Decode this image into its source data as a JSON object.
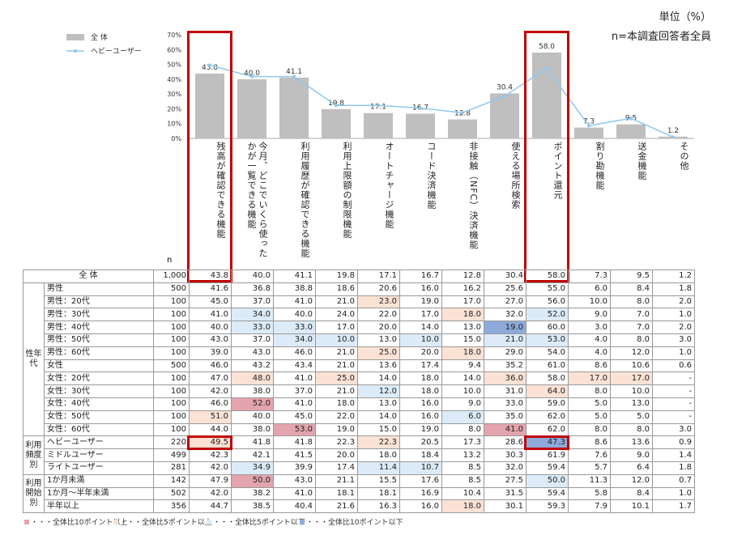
{
  "unit": "単位（%）",
  "base_note": "n=本調査回答者全員",
  "chart_data": {
    "type": "bar",
    "categories": [
      "残高が確認できる機能",
      "今月、どこでいくら使ったかが一覧できる機能",
      "利用履歴が確認できる機能",
      "利用上限額の制限機能",
      "オートチャージ機能",
      "コード決済機能",
      "非接触（NFC）決済機能",
      "使える場所検索",
      "ポイント還元",
      "割り勘機能",
      "送金機能",
      "その他"
    ],
    "ylim": [
      0,
      70
    ],
    "yticks": [
      {
        "value": 0,
        "label": "0%"
      },
      {
        "value": 10,
        "label": "10%"
      },
      {
        "value": 20,
        "label": "20%"
      },
      {
        "value": 30,
        "label": "30%"
      },
      {
        "value": 40,
        "label": "40%"
      },
      {
        "value": 50,
        "label": "50%"
      },
      {
        "value": 60,
        "label": "60%"
      },
      {
        "value": 70,
        "label": "70%"
      }
    ],
    "series": [
      {
        "name": "全 体",
        "color": "#bfbfbf",
        "type": "bar",
        "values": [
          43.8,
          40.0,
          41.1,
          19.8,
          17.1,
          16.7,
          12.8,
          30.4,
          58.0,
          7.3,
          9.5,
          1.2
        ],
        "value_labels": [
          "43.8",
          "40.0",
          "41.1",
          "19.8",
          "17.1",
          "16.7",
          "12.8",
          "30.4",
          "58.0",
          "7.3",
          "9.5",
          "1.2"
        ]
      },
      {
        "name": "ヘビーユーザー",
        "color": "#8ec8f0",
        "type": "line",
        "values": [
          49.5,
          41.8,
          41.8,
          22.3,
          22.3,
          20.5,
          17.3,
          28.6,
          47.3,
          8.6,
          13.6,
          0.9
        ]
      }
    ]
  },
  "table": {
    "n_header": "n",
    "total": {
      "label": "全 体",
      "n": "1,000",
      "values": [
        "43.8",
        "40.0",
        "41.1",
        "19.8",
        "17.1",
        "16.7",
        "12.8",
        "30.4",
        "58.0",
        "7.3",
        "9.5",
        "1.2"
      ]
    },
    "groups": [
      {
        "label": "性年代",
        "rows": [
          {
            "label": "男性",
            "n": "500",
            "values": [
              "41.6",
              "36.8",
              "38.8",
              "18.6",
              "20.6",
              "16.0",
              "16.2",
              "25.6",
              "55.0",
              "6.0",
              "8.4",
              "1.8"
            ],
            "shade": [
              null,
              null,
              null,
              null,
              null,
              null,
              null,
              null,
              null,
              null,
              null,
              null
            ]
          },
          {
            "label": "男性：20代",
            "n": "100",
            "values": [
              "45.0",
              "37.0",
              "41.0",
              "21.0",
              "23.0",
              "19.0",
              "17.0",
              "27.0",
              "56.0",
              "10.0",
              "8.0",
              "2.0"
            ],
            "shade": [
              null,
              null,
              null,
              null,
              1,
              null,
              null,
              null,
              null,
              null,
              null,
              null
            ]
          },
          {
            "label": "男性：30代",
            "n": "100",
            "values": [
              "41.0",
              "34.0",
              "40.0",
              "24.0",
              "22.0",
              "17.0",
              "18.0",
              "32.0",
              "52.0",
              "9.0",
              "7.0",
              "1.0"
            ],
            "shade": [
              null,
              2,
              null,
              null,
              null,
              null,
              1,
              null,
              2,
              null,
              null,
              null
            ]
          },
          {
            "label": "男性：40代",
            "n": "100",
            "values": [
              "40.0",
              "33.0",
              "33.0",
              "17.0",
              "20.0",
              "14.0",
              "13.0",
              "19.0",
              "60.0",
              "3.0",
              "7.0",
              "2.0"
            ],
            "shade": [
              null,
              2,
              2,
              null,
              null,
              null,
              null,
              3,
              null,
              null,
              null,
              null
            ]
          },
          {
            "label": "男性：50代",
            "n": "100",
            "values": [
              "43.0",
              "37.0",
              "34.0",
              "10.0",
              "13.0",
              "10.0",
              "15.0",
              "21.0",
              "53.0",
              "4.0",
              "8.0",
              "3.0"
            ],
            "shade": [
              null,
              null,
              2,
              2,
              null,
              2,
              null,
              2,
              2,
              null,
              null,
              null
            ]
          },
          {
            "label": "男性：60代",
            "n": "100",
            "values": [
              "39.0",
              "43.0",
              "46.0",
              "21.0",
              "25.0",
              "20.0",
              "18.0",
              "29.0",
              "54.0",
              "4.0",
              "12.0",
              "1.0"
            ],
            "shade": [
              null,
              null,
              null,
              null,
              1,
              null,
              1,
              null,
              null,
              null,
              null,
              null
            ]
          },
          {
            "label": "女性",
            "n": "500",
            "values": [
              "46.0",
              "43.2",
              "43.4",
              "21.0",
              "13.6",
              "17.4",
              "9.4",
              "35.2",
              "61.0",
              "8.6",
              "10.6",
              "0.6"
            ],
            "shade": [
              null,
              null,
              null,
              null,
              null,
              null,
              null,
              null,
              null,
              null,
              null,
              null
            ]
          },
          {
            "label": "女性：20代",
            "n": "100",
            "values": [
              "47.0",
              "48.0",
              "41.0",
              "25.0",
              "14.0",
              "18.0",
              "14.0",
              "36.0",
              "58.0",
              "17.0",
              "17.0",
              "-"
            ],
            "shade": [
              null,
              1,
              null,
              1,
              null,
              null,
              null,
              1,
              null,
              1,
              1,
              null
            ]
          },
          {
            "label": "女性：30代",
            "n": "100",
            "values": [
              "42.0",
              "38.0",
              "37.0",
              "21.0",
              "12.0",
              "18.0",
              "10.0",
              "31.0",
              "64.0",
              "8.0",
              "10.0",
              "-"
            ],
            "shade": [
              null,
              null,
              null,
              null,
              2,
              null,
              null,
              null,
              1,
              null,
              null,
              null
            ]
          },
          {
            "label": "女性：40代",
            "n": "100",
            "values": [
              "46.0",
              "52.0",
              "41.0",
              "18.0",
              "13.0",
              "16.0",
              "9.0",
              "33.0",
              "59.0",
              "5.0",
              "13.0",
              "-"
            ],
            "shade": [
              null,
              0,
              null,
              null,
              null,
              null,
              null,
              null,
              null,
              null,
              null,
              null
            ]
          },
          {
            "label": "女性：50代",
            "n": "100",
            "values": [
              "51.0",
              "40.0",
              "45.0",
              "22.0",
              "14.0",
              "16.0",
              "6.0",
              "35.0",
              "62.0",
              "5.0",
              "5.0",
              "-"
            ],
            "shade": [
              1,
              null,
              null,
              null,
              null,
              null,
              2,
              null,
              null,
              null,
              null,
              null
            ]
          },
          {
            "label": "女性：60代",
            "n": "100",
            "values": [
              "44.0",
              "38.0",
              "53.0",
              "19.0",
              "15.0",
              "19.0",
              "8.0",
              "41.0",
              "62.0",
              "8.0",
              "8.0",
              "3.0"
            ],
            "shade": [
              null,
              null,
              0,
              null,
              null,
              null,
              null,
              0,
              null,
              null,
              null,
              null
            ]
          }
        ]
      },
      {
        "label": "利用頻度別",
        "rows": [
          {
            "label": "ヘビーユーザー",
            "n": "220",
            "values": [
              "49.5",
              "41.8",
              "41.8",
              "22.3",
              "22.3",
              "20.5",
              "17.3",
              "28.6",
              "47.3",
              "8.6",
              "13.6",
              "0.9"
            ],
            "shade": [
              1,
              null,
              null,
              null,
              1,
              null,
              null,
              null,
              3,
              null,
              null,
              null
            ]
          },
          {
            "label": "ミドルユーザー",
            "n": "499",
            "values": [
              "42.3",
              "42.1",
              "41.5",
              "20.0",
              "18.0",
              "18.4",
              "13.2",
              "30.3",
              "61.9",
              "7.6",
              "9.0",
              "1.4"
            ],
            "shade": [
              null,
              null,
              null,
              null,
              null,
              null,
              null,
              null,
              null,
              null,
              null,
              null
            ]
          },
          {
            "label": "ライトユーザー",
            "n": "281",
            "values": [
              "42.0",
              "34.9",
              "39.9",
              "17.4",
              "11.4",
              "10.7",
              "8.5",
              "32.0",
              "59.4",
              "5.7",
              "6.4",
              "1.8"
            ],
            "shade": [
              null,
              2,
              null,
              null,
              2,
              2,
              null,
              null,
              null,
              null,
              null,
              null
            ]
          }
        ]
      },
      {
        "label": "利用開始別",
        "rows": [
          {
            "label": "1か月未満",
            "n": "142",
            "values": [
              "47.9",
              "50.0",
              "43.0",
              "21.1",
              "15.5",
              "17.6",
              "8.5",
              "27.5",
              "50.0",
              "11.3",
              "12.0",
              "0.7"
            ],
            "shade": [
              null,
              0,
              null,
              null,
              null,
              null,
              null,
              null,
              2,
              null,
              null,
              null
            ]
          },
          {
            "label": "1か月～半年未満",
            "n": "502",
            "values": [
              "42.0",
              "38.2",
              "41.0",
              "18.1",
              "18.1",
              "16.9",
              "10.4",
              "31.5",
              "59.4",
              "5.8",
              "8.4",
              "1.0"
            ],
            "shade": [
              null,
              null,
              null,
              null,
              null,
              null,
              null,
              null,
              null,
              null,
              null,
              null
            ]
          },
          {
            "label": "半年以上",
            "n": "356",
            "values": [
              "44.7",
              "38.5",
              "40.4",
              "21.6",
              "16.3",
              "16.0",
              "18.0",
              "30.1",
              "59.3",
              "7.9",
              "10.1",
              "1.7"
            ],
            "shade": [
              null,
              null,
              null,
              null,
              null,
              null,
              1,
              null,
              null,
              null,
              null,
              null
            ]
          }
        ]
      }
    ],
    "shade_legend": [
      {
        "label": "・・・全体比10ポイント以上",
        "color": "#e3a4ad"
      },
      {
        "label": "・・・全体比5ポイント以上",
        "color": "#fbe2d5"
      },
      {
        "label": "・・・全体比5ポイント以下",
        "color": "#dcebf7"
      },
      {
        "label": "・・・全体比10ポイント以下",
        "color": "#8eaadb"
      }
    ]
  }
}
